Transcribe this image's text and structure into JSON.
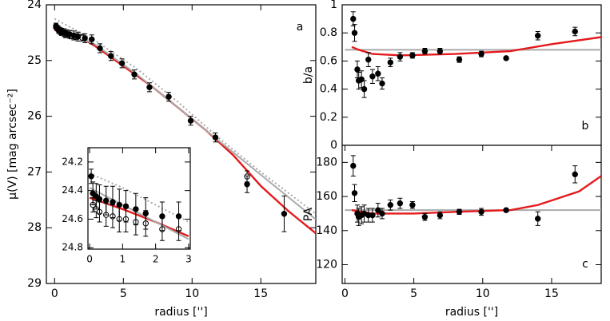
{
  "chart_data": [
    {
      "type": "scatter",
      "panel_label": "a",
      "ylabel": "μ(V) [mag arcsec⁻²]",
      "xlabel": "radius ['']",
      "xlim": [
        -0.6,
        19
      ],
      "ylim": [
        29,
        24
      ],
      "xticks": [
        0,
        5,
        10,
        15
      ],
      "yticks": [
        24,
        25,
        26,
        27,
        28,
        29
      ],
      "series": [
        {
          "color": "#e41a1c",
          "line": "solid",
          "x": [
            0,
            2,
            3,
            5,
            7,
            9,
            11,
            13,
            15,
            17,
            19
          ],
          "values": [
            24.45,
            24.6,
            24.75,
            25.1,
            25.45,
            25.85,
            26.25,
            26.7,
            27.25,
            27.7,
            28.1
          ]
        },
        {
          "color": "#aaaaaa",
          "line": "solid",
          "x": [
            0,
            3,
            6,
            9,
            12,
            15,
            19
          ],
          "values": [
            24.38,
            24.72,
            25.25,
            25.85,
            26.45,
            27.05,
            27.85
          ]
        },
        {
          "color": "#aaaaaa",
          "line": "dotted",
          "x": [
            0,
            3,
            6,
            9,
            12,
            15,
            19
          ],
          "values": [
            24.25,
            24.65,
            25.15,
            25.75,
            26.4,
            27.0,
            27.75
          ]
        },
        {
          "color": "#000000",
          "marker": "open",
          "x": [
            0.1,
            0.3,
            0.5,
            0.8,
            1.2,
            1.6,
            2.0,
            14.0
          ],
          "values": [
            24.4,
            24.46,
            24.5,
            24.54,
            24.56,
            24.57,
            24.59,
            27.08
          ],
          "errors": [
            0.04,
            0.04,
            0.05,
            0.05,
            0.05,
            0.05,
            0.06,
            0.1
          ]
        },
        {
          "color": "#000000",
          "marker": "filled",
          "x": [
            0.1,
            0.2,
            0.3,
            0.4,
            0.5,
            0.7,
            0.9,
            1.1,
            1.4,
            1.7,
            2.2,
            2.7,
            3.3,
            4.1,
            4.9,
            5.8,
            6.9,
            8.3,
            9.9,
            11.7,
            14.0,
            16.7
          ],
          "values": [
            24.38,
            24.42,
            24.45,
            24.47,
            24.48,
            24.5,
            24.52,
            24.53,
            24.55,
            24.57,
            24.6,
            24.62,
            24.78,
            24.92,
            25.05,
            25.25,
            25.48,
            25.65,
            26.08,
            26.38,
            27.22,
            27.75
          ],
          "errors": [
            0.05,
            0.05,
            0.06,
            0.06,
            0.06,
            0.07,
            0.07,
            0.07,
            0.08,
            0.08,
            0.08,
            0.08,
            0.08,
            0.08,
            0.08,
            0.08,
            0.08,
            0.08,
            0.08,
            0.08,
            0.15,
            0.32
          ]
        }
      ]
    },
    {
      "type": "scatter",
      "xlim": [
        -0.05,
        3.05
      ],
      "ylim": [
        24.81,
        24.1
      ],
      "xticks": [
        0,
        1,
        2,
        3
      ],
      "yticks": [
        24.2,
        24.4,
        24.6,
        24.8
      ],
      "series": [
        {
          "color": "#e41a1c",
          "line": "solid",
          "x": [
            0,
            1,
            2,
            3
          ],
          "values": [
            24.45,
            24.53,
            24.62,
            24.72
          ]
        },
        {
          "color": "#aaaaaa",
          "line": "solid",
          "x": [
            0,
            1,
            2,
            3
          ],
          "values": [
            24.38,
            24.5,
            24.62,
            24.74
          ]
        },
        {
          "color": "#aaaaaa",
          "line": "dotted",
          "x": [
            0,
            1,
            2,
            3
          ],
          "values": [
            24.28,
            24.38,
            24.5,
            24.62
          ]
        },
        {
          "color": "#000000",
          "marker": "open",
          "x": [
            0.1,
            0.2,
            0.3,
            0.5,
            0.7,
            0.9,
            1.1,
            1.4,
            1.7,
            2.2,
            2.7
          ],
          "values": [
            24.5,
            24.53,
            24.55,
            24.57,
            24.58,
            24.6,
            24.6,
            24.62,
            24.63,
            24.67,
            24.67
          ],
          "errors": [
            0.05,
            0.06,
            0.07,
            0.08,
            0.08,
            0.09,
            0.09,
            0.09,
            0.09,
            0.08,
            0.08
          ]
        },
        {
          "color": "#000000",
          "marker": "filled",
          "x": [
            0.05,
            0.1,
            0.2,
            0.3,
            0.5,
            0.7,
            0.9,
            1.1,
            1.4,
            1.7,
            2.2,
            2.7
          ],
          "values": [
            24.3,
            24.42,
            24.44,
            24.46,
            24.47,
            24.48,
            24.5,
            24.51,
            24.53,
            24.56,
            24.58,
            24.58
          ],
          "errors": [
            0.05,
            0.08,
            0.09,
            0.1,
            0.1,
            0.11,
            0.11,
            0.11,
            0.11,
            0.11,
            0.1,
            0.1
          ]
        }
      ]
    },
    {
      "type": "scatter",
      "panel_label": "b",
      "ylabel": "b/a",
      "xlim": [
        -0.2,
        18.6
      ],
      "ylim": [
        0,
        1
      ],
      "yticks": [
        0,
        0.2,
        0.4,
        0.6,
        0.8,
        1
      ],
      "series": [
        {
          "color": "#aaaaaa",
          "line": "solid",
          "x": [
            0,
            18.6
          ],
          "values": [
            0.68,
            0.68
          ]
        },
        {
          "color": "#e41a1c",
          "line": "solid",
          "x": [
            0.5,
            1,
            2,
            4,
            8,
            12,
            15,
            18.6
          ],
          "values": [
            0.7,
            0.68,
            0.65,
            0.64,
            0.65,
            0.67,
            0.72,
            0.77
          ]
        },
        {
          "color": "#000000",
          "marker": "filled",
          "x": [
            0.6,
            0.7,
            0.9,
            1.0,
            1.2,
            1.4,
            1.7,
            2.0,
            2.4,
            2.7,
            3.3,
            4.0,
            4.9,
            5.8,
            6.9,
            8.3,
            9.9,
            11.7,
            14.0,
            16.7
          ],
          "values": [
            0.9,
            0.8,
            0.54,
            0.46,
            0.47,
            0.4,
            0.61,
            0.49,
            0.51,
            0.44,
            0.59,
            0.63,
            0.64,
            0.67,
            0.67,
            0.61,
            0.65,
            0.62,
            0.78,
            0.81
          ],
          "errors": [
            0.05,
            0.06,
            0.06,
            0.06,
            0.06,
            0.06,
            0.05,
            0.05,
            0.05,
            0.04,
            0.03,
            0.03,
            0.02,
            0.02,
            0.02,
            0.02,
            0.02,
            0.01,
            0.03,
            0.03
          ]
        }
      ]
    },
    {
      "type": "scatter",
      "panel_label": "c",
      "ylabel": "PA",
      "xlabel": "radius ['']",
      "xlim": [
        -0.2,
        18.6
      ],
      "ylim": [
        109,
        190
      ],
      "xticks": [
        0,
        5,
        10,
        15
      ],
      "yticks": [
        120,
        140,
        160,
        180
      ],
      "series": [
        {
          "color": "#aaaaaa",
          "line": "solid",
          "x": [
            0,
            18.6
          ],
          "values": [
            152,
            152
          ]
        },
        {
          "color": "#e41a1c",
          "line": "solid",
          "x": [
            0.5,
            2,
            5,
            8,
            12,
            14,
            17,
            18.6
          ],
          "values": [
            152,
            150,
            150,
            151,
            152,
            155,
            163,
            172
          ]
        },
        {
          "color": "#000000",
          "marker": "filled",
          "x": [
            0.6,
            0.7,
            0.9,
            1.0,
            1.2,
            1.4,
            1.7,
            2.0,
            2.4,
            2.7,
            3.3,
            4.0,
            4.9,
            5.8,
            6.9,
            8.3,
            9.9,
            11.7,
            14.0,
            16.7
          ],
          "values": [
            178,
            162,
            150,
            148,
            149,
            150,
            149,
            149,
            152,
            150,
            155,
            156,
            155,
            148,
            149,
            151,
            151,
            152,
            147,
            173
          ],
          "errors": [
            6,
            5,
            5,
            5,
            5,
            5,
            4,
            4,
            4,
            3,
            3,
            3,
            2,
            2,
            2,
            1.5,
            2,
            1,
            4,
            5
          ]
        }
      ]
    }
  ]
}
